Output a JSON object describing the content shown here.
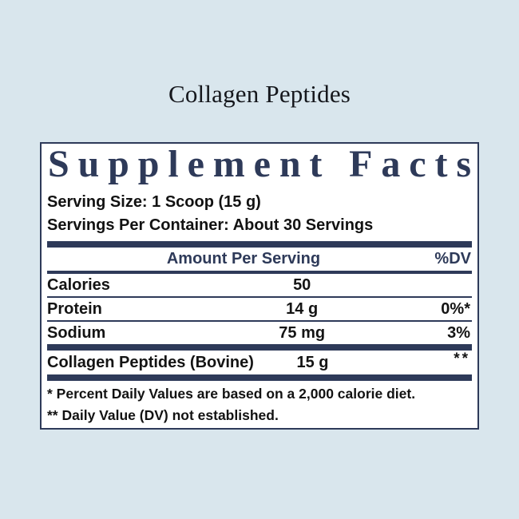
{
  "colors": {
    "background": "#d9e6ed",
    "navy": "#2e3a59",
    "text": "#141414",
    "panel_background": "#ffffff"
  },
  "product_title": "Collagen Peptides",
  "panel": {
    "title": "Supplement Facts",
    "serving_size": "Serving Size: 1 Scoop (15 g)",
    "servings_per_container": "Servings Per Container: About 30 Servings",
    "header": {
      "amount": "Amount Per Serving",
      "dv": "%DV"
    },
    "rows": [
      {
        "name": "Calories",
        "amount": "50",
        "dv": ""
      },
      {
        "name": "Protein",
        "amount": "14 g",
        "dv": "0%*"
      },
      {
        "name": "Sodium",
        "amount": "75 mg",
        "dv": "3%"
      }
    ],
    "ingredient_row": {
      "name": "Collagen Peptides (Bovine)",
      "amount": "15 g",
      "dv": "**"
    },
    "footnotes": [
      "* Percent Daily Values are based on a 2,000 calorie diet.",
      "** Daily Value (DV) not established."
    ]
  }
}
